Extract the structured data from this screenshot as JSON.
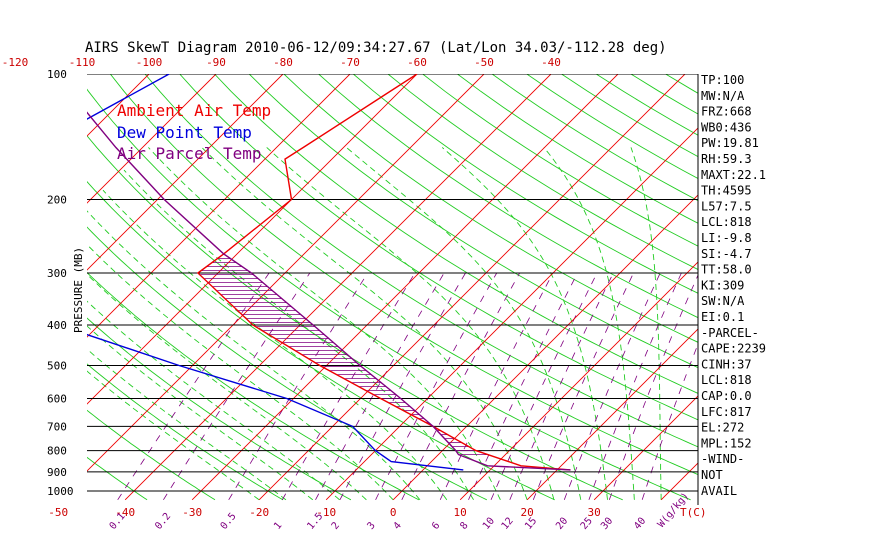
{
  "chart_data": {
    "type": "skewt",
    "title": "AIRS SkewT Diagram 2010-06-12/09:34:27.67 (Lat/Lon 34.03/-112.28 deg)",
    "ylabel": "PRESSURE (MB)",
    "xlabel_unit": "T(C)",
    "mixing_ratio_unit": "W(g/kg)",
    "pressure_scale": "log",
    "pressure_range": [
      1050,
      100
    ],
    "pressure_ticks": [
      100,
      200,
      300,
      400,
      500,
      600,
      700,
      800,
      900,
      1000
    ],
    "top_temp_ticks": [
      -120,
      -110,
      -100,
      -90,
      -80,
      -70,
      -60,
      -50,
      -40
    ],
    "bottom_temp_ticks": [
      -50,
      -40,
      -30,
      -20,
      -10,
      0,
      10,
      20,
      30
    ],
    "mixing_ratio_ticks": [
      "0.1",
      "0.2",
      "0.5",
      "1",
      "1.5",
      "2",
      "3",
      "4",
      "6",
      "8",
      "10",
      "12",
      "15",
      "20",
      "25",
      "30",
      "40"
    ],
    "legend": [
      {
        "label": "Ambient Air Temp",
        "color": "#ee0000"
      },
      {
        "label": "Dew Point Temp",
        "color": "#0000dd"
      },
      {
        "label": "Air Parcel Temp",
        "color": "#800080"
      }
    ],
    "series": [
      {
        "name": "Ambient Air Temp",
        "color": "#ee0000",
        "points": [
          {
            "p": 100,
            "t": -60
          },
          {
            "p": 150,
            "t": -66
          },
          {
            "p": 160,
            "t": -67
          },
          {
            "p": 200,
            "t": -60
          },
          {
            "p": 270,
            "t": -62
          },
          {
            "p": 300,
            "t": -63
          },
          {
            "p": 400,
            "t": -47
          },
          {
            "p": 500,
            "t": -31
          },
          {
            "p": 600,
            "t": -17
          },
          {
            "p": 700,
            "t": -5
          },
          {
            "p": 800,
            "t": 5
          },
          {
            "p": 870,
            "t": 14
          },
          {
            "p": 890,
            "t": 22
          }
        ]
      },
      {
        "name": "Dew Point Temp",
        "color": "#0000dd",
        "points": [
          {
            "p": 100,
            "t": -97
          },
          {
            "p": 150,
            "t": -106
          },
          {
            "p": 200,
            "t": -103
          },
          {
            "p": 250,
            "t": -96
          },
          {
            "p": 300,
            "t": -87
          },
          {
            "p": 400,
            "t": -76
          },
          {
            "p": 500,
            "t": -52
          },
          {
            "p": 600,
            "t": -31
          },
          {
            "p": 700,
            "t": -17
          },
          {
            "p": 800,
            "t": -10
          },
          {
            "p": 850,
            "t": -6
          },
          {
            "p": 890,
            "t": 6
          }
        ]
      },
      {
        "name": "Air Parcel Temp",
        "color": "#800080",
        "points": [
          {
            "p": 100,
            "t": -114
          },
          {
            "p": 150,
            "t": -94
          },
          {
            "p": 200,
            "t": -79
          },
          {
            "p": 270,
            "t": -62
          },
          {
            "p": 300,
            "t": -55
          },
          {
            "p": 400,
            "t": -38
          },
          {
            "p": 500,
            "t": -25
          },
          {
            "p": 600,
            "t": -14
          },
          {
            "p": 700,
            "t": -5
          },
          {
            "p": 800,
            "t": 2
          },
          {
            "p": 818,
            "t": 3
          },
          {
            "p": 870,
            "t": 9
          },
          {
            "p": 890,
            "t": 22
          }
        ]
      }
    ],
    "cape_region": {
      "p_bottom": 818,
      "p_top": 270
    },
    "indices": [
      "TP:100",
      "MW:N/A",
      "FRZ:668",
      "WB0:436",
      "PW:19.81",
      "RH:59.3",
      "MAXT:22.1",
      "TH:4595",
      "L57:7.5",
      "LCL:818",
      "LI:-9.8",
      "SI:-4.7",
      "TT:58.0",
      "KI:309",
      "SW:N/A",
      "EI:0.1",
      "-PARCEL-",
      "CAPE:2239",
      "CINH:37",
      "LCL:818",
      "CAP:0.0",
      "LFC:817",
      "EL:272",
      "MPL:152",
      "-WIND-",
      "NOT",
      "AVAIL"
    ]
  }
}
